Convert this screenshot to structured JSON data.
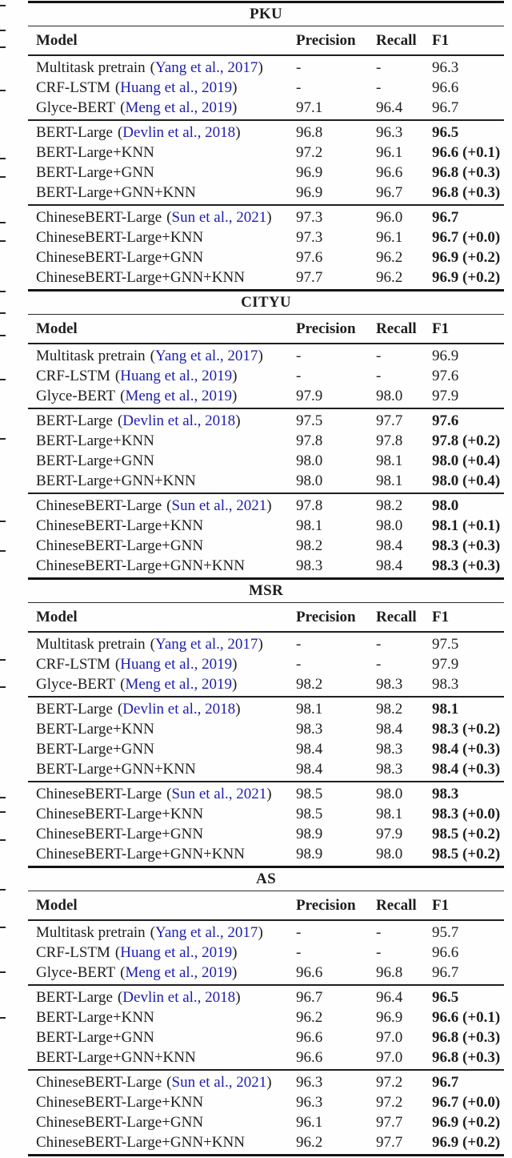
{
  "page": {
    "background": "#fefefe",
    "text_color": "#1e1e1e",
    "rule_color": "#1b1b1b",
    "citation_color": "#1e1eae"
  },
  "columns": [
    "Model",
    "Precision",
    "Recall",
    "F1"
  ],
  "sections": [
    {
      "title": "PKU",
      "groups": [
        {
          "rows": [
            {
              "model": "Multitask pretrain",
              "citation": "Yang et al., 2017",
              "precision": "-",
              "recall": "-",
              "f1": "96.3",
              "f1_bold": false
            },
            {
              "model": "CRF-LSTM",
              "citation": "Huang et al., 2019",
              "precision": "-",
              "recall": "-",
              "f1": "96.6",
              "f1_bold": false
            },
            {
              "model": "Glyce-BERT",
              "citation": "Meng et al., 2019",
              "precision": "97.1",
              "recall": "96.4",
              "f1": "96.7",
              "f1_bold": false
            }
          ]
        },
        {
          "rows": [
            {
              "model": "BERT-Large",
              "citation": "Devlin et al., 2018",
              "precision": "96.8",
              "recall": "96.3",
              "f1": "96.5",
              "f1_bold": true
            },
            {
              "model": "BERT-Large+KNN",
              "precision": "97.2",
              "recall": "96.1",
              "f1": "96.6 (+0.1)",
              "f1_bold": true
            },
            {
              "model": "BERT-Large+GNN",
              "precision": "96.9",
              "recall": "96.6",
              "f1": "96.8 (+0.3)",
              "f1_bold": true
            },
            {
              "model": "BERT-Large+GNN+KNN",
              "precision": "96.9",
              "recall": "96.7",
              "f1": "96.8 (+0.3)",
              "f1_bold": true
            }
          ]
        },
        {
          "rows": [
            {
              "model": "ChineseBERT-Large",
              "citation": "Sun et al., 2021",
              "precision": "97.3",
              "recall": "96.0",
              "f1": "96.7",
              "f1_bold": true
            },
            {
              "model": "ChineseBERT-Large+KNN",
              "precision": "97.3",
              "recall": "96.1",
              "f1": "96.7 (+0.0)",
              "f1_bold": true
            },
            {
              "model": "ChineseBERT-Large+GNN",
              "precision": "97.6",
              "recall": "96.2",
              "f1": "96.9 (+0.2)",
              "f1_bold": true
            },
            {
              "model": "ChineseBERT-Large+GNN+KNN",
              "precision": "97.7",
              "recall": "96.2",
              "f1": "96.9 (+0.2)",
              "f1_bold": true
            }
          ]
        }
      ]
    },
    {
      "title": "CITYU",
      "groups": [
        {
          "rows": [
            {
              "model": "Multitask pretrain",
              "citation": "Yang et al., 2017",
              "precision": "-",
              "recall": "-",
              "f1": "96.9",
              "f1_bold": false
            },
            {
              "model": "CRF-LSTM",
              "citation": "Huang et al., 2019",
              "precision": "-",
              "recall": "-",
              "f1": "97.6",
              "f1_bold": false
            },
            {
              "model": "Glyce-BERT",
              "citation": "Meng et al., 2019",
              "precision": "97.9",
              "recall": "98.0",
              "f1": "97.9",
              "f1_bold": false
            }
          ]
        },
        {
          "rows": [
            {
              "model": "BERT-Large",
              "citation": "Devlin et al., 2018",
              "precision": "97.5",
              "recall": "97.7",
              "f1": "97.6",
              "f1_bold": true
            },
            {
              "model": "BERT-Large+KNN",
              "precision": "97.8",
              "recall": "97.8",
              "f1": "97.8 (+0.2)",
              "f1_bold": true
            },
            {
              "model": "BERT-Large+GNN",
              "precision": "98.0",
              "recall": "98.1",
              "f1": "98.0 (+0.4)",
              "f1_bold": true
            },
            {
              "model": "BERT-Large+GNN+KNN",
              "precision": "98.0",
              "recall": "98.1",
              "f1": "98.0 (+0.4)",
              "f1_bold": true
            }
          ]
        },
        {
          "rows": [
            {
              "model": "ChineseBERT-Large",
              "citation": "Sun et al., 2021",
              "precision": "97.8",
              "recall": "98.2",
              "f1": "98.0",
              "f1_bold": true
            },
            {
              "model": "ChineseBERT-Large+KNN",
              "precision": "98.1",
              "recall": "98.0",
              "f1": "98.1 (+0.1)",
              "f1_bold": true
            },
            {
              "model": "ChineseBERT-Large+GNN",
              "precision": "98.2",
              "recall": "98.4",
              "f1": "98.3 (+0.3)",
              "f1_bold": true
            },
            {
              "model": "ChineseBERT-Large+GNN+KNN",
              "precision": "98.3",
              "recall": "98.4",
              "f1": "98.3 (+0.3)",
              "f1_bold": true
            }
          ]
        }
      ]
    },
    {
      "title": "MSR",
      "groups": [
        {
          "rows": [
            {
              "model": "Multitask pretrain",
              "citation": "Yang et al., 2017",
              "precision": "-",
              "recall": "-",
              "f1": "97.5",
              "f1_bold": false
            },
            {
              "model": "CRF-LSTM",
              "citation": "Huang et al., 2019",
              "precision": "-",
              "recall": "-",
              "f1": "97.9",
              "f1_bold": false
            },
            {
              "model": "Glyce-BERT",
              "citation": "Meng et al., 2019",
              "precision": "98.2",
              "recall": "98.3",
              "f1": "98.3",
              "f1_bold": false
            }
          ]
        },
        {
          "rows": [
            {
              "model": "BERT-Large",
              "citation": "Devlin et al., 2018",
              "precision": "98.1",
              "recall": "98.2",
              "f1": "98.1",
              "f1_bold": true
            },
            {
              "model": "BERT-Large+KNN",
              "precision": "98.3",
              "recall": "98.4",
              "f1": "98.3 (+0.2)",
              "f1_bold": true
            },
            {
              "model": "BERT-Large+GNN",
              "precision": "98.4",
              "recall": "98.3",
              "f1": "98.4 (+0.3)",
              "f1_bold": true
            },
            {
              "model": "BERT-Large+GNN+KNN",
              "precision": "98.4",
              "recall": "98.3",
              "f1": "98.4 (+0.3)",
              "f1_bold": true
            }
          ]
        },
        {
          "rows": [
            {
              "model": "ChineseBERT-Large",
              "citation": "Sun et al., 2021",
              "precision": "98.5",
              "recall": "98.0",
              "f1": "98.3",
              "f1_bold": true
            },
            {
              "model": "ChineseBERT-Large+KNN",
              "precision": "98.5",
              "recall": "98.1",
              "f1": "98.3 (+0.0)",
              "f1_bold": true
            },
            {
              "model": "ChineseBERT-Large+GNN",
              "precision": "98.9",
              "recall": "97.9",
              "f1": "98.5 (+0.2)",
              "f1_bold": true
            },
            {
              "model": "ChineseBERT-Large+GNN+KNN",
              "precision": "98.9",
              "recall": "98.0",
              "f1": "98.5 (+0.2)",
              "f1_bold": true
            }
          ]
        }
      ]
    },
    {
      "title": "AS",
      "groups": [
        {
          "rows": [
            {
              "model": "Multitask pretrain",
              "citation": "Yang et al., 2017",
              "precision": "-",
              "recall": "-",
              "f1": "95.7",
              "f1_bold": false
            },
            {
              "model": "CRF-LSTM",
              "citation": "Huang et al., 2019",
              "precision": "-",
              "recall": "-",
              "f1": "96.6",
              "f1_bold": false
            },
            {
              "model": "Glyce-BERT",
              "citation": "Meng et al., 2019",
              "precision": "96.6",
              "recall": "96.8",
              "f1": "96.7",
              "f1_bold": false
            }
          ]
        },
        {
          "rows": [
            {
              "model": "BERT-Large",
              "citation": "Devlin et al., 2018",
              "precision": "96.7",
              "recall": "96.4",
              "f1": "96.5",
              "f1_bold": true
            },
            {
              "model": "BERT-Large+KNN",
              "precision": "96.2",
              "recall": "96.9",
              "f1": "96.6 (+0.1)",
              "f1_bold": true
            },
            {
              "model": "BERT-Large+GNN",
              "precision": "96.6",
              "recall": "97.0",
              "f1": "96.8 (+0.3)",
              "f1_bold": true
            },
            {
              "model": "BERT-Large+GNN+KNN",
              "precision": "96.6",
              "recall": "97.0",
              "f1": "96.8 (+0.3)",
              "f1_bold": true
            }
          ]
        },
        {
          "rows": [
            {
              "model": "ChineseBERT-Large",
              "citation": "Sun et al., 2021",
              "precision": "96.3",
              "recall": "97.2",
              "f1": "96.7",
              "f1_bold": true
            },
            {
              "model": "ChineseBERT-Large+KNN",
              "precision": "96.3",
              "recall": "97.2",
              "f1": "96.7 (+0.0)",
              "f1_bold": true
            },
            {
              "model": "ChineseBERT-Large+GNN",
              "precision": "96.1",
              "recall": "97.7",
              "f1": "96.9 (+0.2)",
              "f1_bold": true
            },
            {
              "model": "ChineseBERT-Large+GNN+KNN",
              "precision": "96.2",
              "recall": "97.7",
              "f1": "96.9 (+0.2)",
              "f1_bold": true
            }
          ]
        }
      ]
    }
  ],
  "margin_ticks": [
    6,
    37,
    58,
    112,
    197,
    220,
    277,
    300,
    363,
    390,
    418,
    473,
    547,
    650,
    687,
    823,
    857,
    995,
    1013,
    1048,
    1110,
    1157,
    1213,
    1270
  ]
}
